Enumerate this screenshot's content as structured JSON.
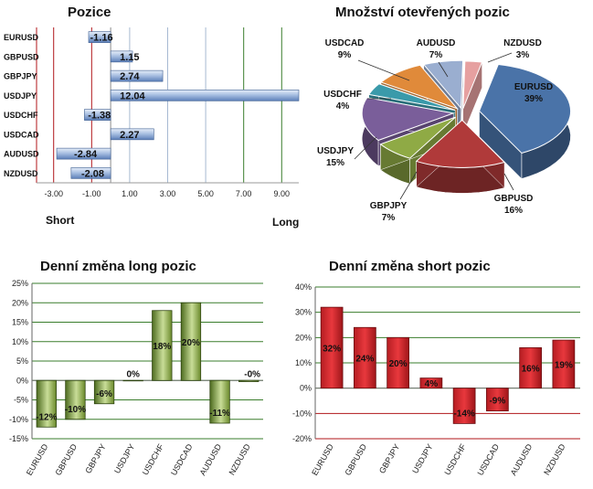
{
  "charts": {
    "pozice": {
      "title": "Pozice",
      "short_label": "Short",
      "long_label": "Long",
      "tick_labels": [
        "-3.00",
        "-1.00",
        "1.00",
        "3.00",
        "5.00",
        "7.00",
        "9.00"
      ]
    },
    "mnozstvi": {
      "title": "Množství otevřených pozic"
    },
    "long_change": {
      "title": "Denní změna long pozic",
      "tick_labels": [
        "25%",
        "20%",
        "15%",
        "10%",
        "5%",
        "0%",
        "-5%",
        "-10%",
        "-15%"
      ]
    },
    "short_change": {
      "title": "Denní změna short pozic",
      "tick_labels": [
        "40%",
        "30%",
        "20%",
        "10%",
        "0%",
        "-10%",
        "-20%"
      ]
    }
  },
  "colors": {
    "bar_blue": "#5b7eb8",
    "bar_green": "#7a9a3e",
    "bar_red": "#c0272d",
    "grid_green": "#3a7d2c",
    "grid_red": "#b0151a"
  },
  "chart_data": [
    {
      "type": "bar",
      "orientation": "horizontal",
      "title": "Pozice",
      "xlabel_left": "Short",
      "xlabel_right": "Long",
      "categories": [
        "EURUSD",
        "GBPUSD",
        "GBPJPY",
        "USDJPY",
        "USDCHF",
        "USDCAD",
        "AUDUSD",
        "NZDUSD"
      ],
      "values": [
        -1.16,
        1.15,
        2.74,
        12.04,
        -1.38,
        2.27,
        -2.84,
        -2.08
      ],
      "value_labels": [
        "-1.16",
        "1.15",
        "2.74",
        "12.04",
        "-1.38",
        "2.27",
        "-2.84",
        "-2.08"
      ],
      "xlim": [
        -3.9,
        9.9
      ]
    },
    {
      "type": "pie",
      "title": "Množství otevřených pozic",
      "categories": [
        "EURUSD",
        "GBPUSD",
        "GBPJPY",
        "USDJPY",
        "USDCHF",
        "USDCAD",
        "AUDUSD",
        "NZDUSD"
      ],
      "values": [
        39,
        16,
        7,
        15,
        4,
        9,
        7,
        3
      ],
      "value_labels": [
        "39%",
        "16%",
        "7%",
        "15%",
        "4%",
        "9%",
        "7%",
        "3%"
      ],
      "colors": [
        "#4a73a8",
        "#b03a3a",
        "#8faa45",
        "#7a5e9a",
        "#3a9aaa",
        "#e08a3a",
        "#9aaed0",
        "#e6a0a0"
      ]
    },
    {
      "type": "bar",
      "title": "Denní změna long pozic",
      "categories": [
        "EURUSD",
        "GBPUSD",
        "GBPJPY",
        "USDJPY",
        "USDCHF",
        "USDCAD",
        "AUDUSD",
        "NZDUSD"
      ],
      "values": [
        -12,
        -10,
        -6,
        0,
        18,
        20,
        -11,
        -0.3
      ],
      "value_labels": [
        "-12%",
        "-10%",
        "-6%",
        "0%",
        "18%",
        "20%",
        "-11%",
        "-0%"
      ],
      "ylim": [
        -15,
        25
      ]
    },
    {
      "type": "bar",
      "title": "Denní změna short pozic",
      "categories": [
        "EURUSD",
        "GBPUSD",
        "GBPJPY",
        "USDJPY",
        "USDCHF",
        "USDCAD",
        "AUDUSD",
        "NZDUSD"
      ],
      "values": [
        32,
        24,
        20,
        4,
        -14,
        -9,
        16,
        19
      ],
      "value_labels": [
        "32%",
        "24%",
        "20%",
        "4%",
        "-14%",
        "-9%",
        "16%",
        "19%"
      ],
      "ylim": [
        -20,
        40
      ]
    }
  ]
}
